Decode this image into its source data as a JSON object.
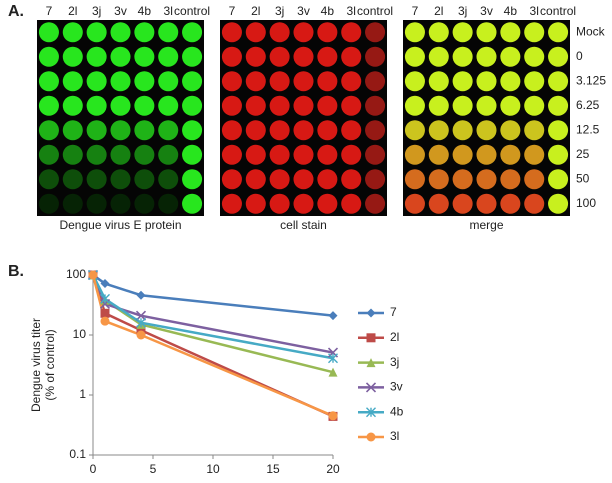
{
  "panel_a": {
    "label": "A.",
    "columns": [
      "7",
      "2l",
      "3j",
      "3v",
      "4b",
      "3l",
      "control"
    ],
    "rows": [
      "Mock",
      "0",
      "3.125",
      "6.25",
      "12.5",
      "25",
      "50",
      "100"
    ],
    "captions": [
      "Dengue virus E protein",
      "cell stain",
      "merge"
    ]
  },
  "chart_data": {
    "type": "line",
    "panel_label": "B.",
    "y_label": [
      "Dengue virus titer",
      "(% of control)"
    ],
    "x": [
      0,
      1,
      4,
      20
    ],
    "xlim": [
      0,
      20
    ],
    "xticks": [
      0,
      5,
      10,
      15,
      20
    ],
    "ylim": [
      0.1,
      100
    ],
    "yticks": [
      0.1,
      1,
      10,
      100
    ],
    "log_y": true,
    "grid": false,
    "legend": "right",
    "series": [
      {
        "name": "7",
        "color": "#4a7ebb",
        "marker": "diamond",
        "values": [
          100,
          72,
          46,
          21
        ]
      },
      {
        "name": "2l",
        "color": "#be4b48",
        "marker": "square",
        "values": [
          100,
          23,
          12,
          0.44
        ]
      },
      {
        "name": "3j",
        "color": "#98b954",
        "marker": "triangle",
        "values": [
          100,
          38,
          15,
          2.4
        ]
      },
      {
        "name": "3v",
        "color": "#7d60a0",
        "marker": "x",
        "values": [
          100,
          33,
          21,
          5.1
        ]
      },
      {
        "name": "4b",
        "color": "#46aac5",
        "marker": "star",
        "values": [
          100,
          40,
          16,
          4.1
        ]
      },
      {
        "name": "3l",
        "color": "#f79646",
        "marker": "circle",
        "values": [
          100,
          17,
          10,
          0.45
        ]
      }
    ]
  }
}
